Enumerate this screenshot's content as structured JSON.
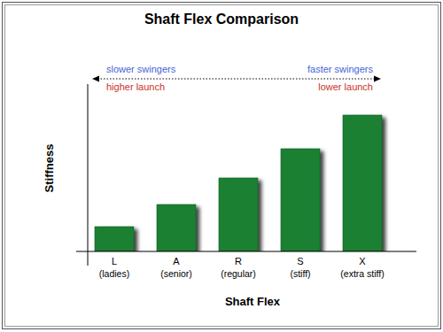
{
  "chart_data": {
    "type": "bar",
    "title": "Shaft Flex Comparison",
    "x_label": "Shaft Flex",
    "y_label": "Stiffness",
    "categories": [
      "L",
      "A",
      "R",
      "S",
      "X"
    ],
    "category_descriptions": [
      "(ladies)",
      "(senior)",
      "(regular)",
      "(stiff)",
      "(extra stiff)"
    ],
    "values": [
      28,
      53,
      83,
      116,
      154
    ],
    "color": "#1a8030",
    "ylim": [
      0,
      189
    ],
    "tick_labels": "x",
    "annotations": [
      {
        "text": "slower swingers",
        "color": "#4466d6"
      },
      {
        "text": "faster swingers",
        "color": "#4466d6"
      },
      {
        "text": "higher launch",
        "color": "#c83228"
      },
      {
        "text": "lower launch",
        "color": "#c83228"
      }
    ]
  }
}
